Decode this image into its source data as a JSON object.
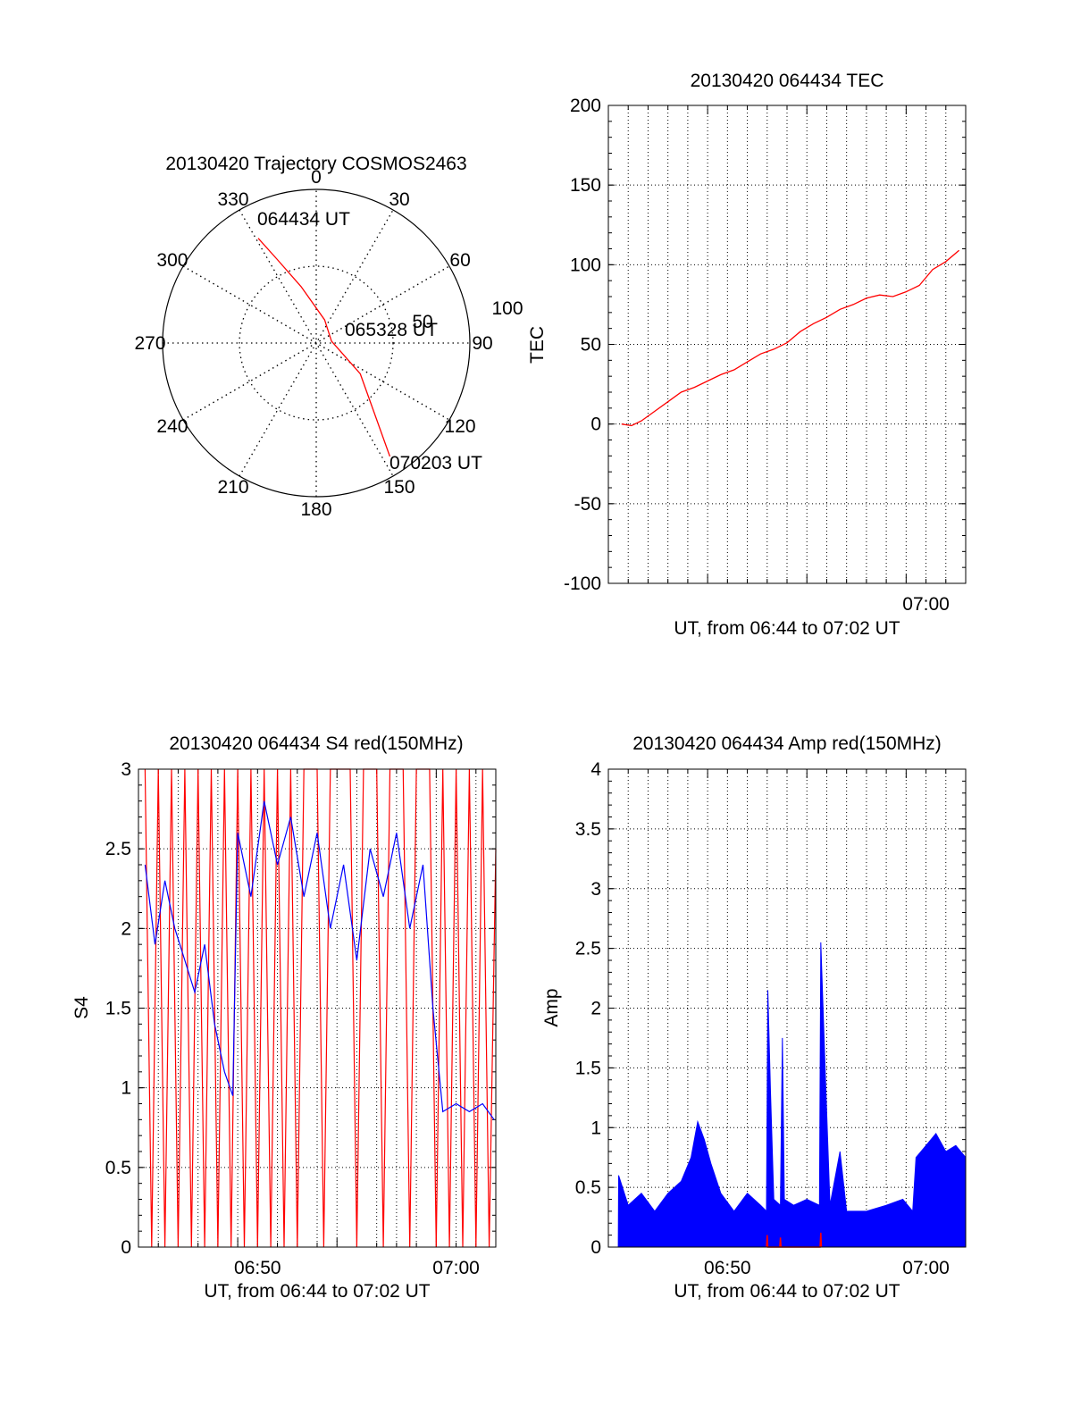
{
  "chart_data": [
    {
      "type": "polar",
      "title": "20130420 Trajectory COSMOS2463",
      "azimuth_ticks": [
        "0",
        "30",
        "60",
        "90",
        "120",
        "150",
        "180",
        "210",
        "240",
        "270",
        "300",
        "330"
      ],
      "ring_labels": [
        "50",
        "100"
      ],
      "r_max": 100,
      "trajectory": [
        {
          "az": 331,
          "r": 78
        },
        {
          "az": 335,
          "r": 60
        },
        {
          "az": 345,
          "r": 38
        },
        {
          "az": 20,
          "r": 16
        },
        {
          "az": 83,
          "r": 10
        },
        {
          "az": 125,
          "r": 35
        },
        {
          "az": 147,
          "r": 88
        }
      ],
      "annotations": [
        {
          "text": "064434 UT",
          "az": 331,
          "r": 78
        },
        {
          "text": "065328 UT",
          "az": 83,
          "r": 10
        },
        {
          "text": "070203 UT",
          "az": 147,
          "r": 88
        }
      ],
      "colors": {
        "trajectory": "#ff0000",
        "grid": "#000000"
      }
    },
    {
      "type": "line",
      "title": "20130420 064434 TEC",
      "xlabel": "UT, from 06:44 to 07:02 UT",
      "ylabel": "TEC",
      "xlim": [
        "06:44",
        "07:02"
      ],
      "ylim": [
        -100,
        200
      ],
      "yticks": [
        "200",
        "150",
        "100",
        "50",
        "0",
        "-50",
        "-100"
      ],
      "xticks": [
        {
          "t": "07:00",
          "label": "07:00"
        }
      ],
      "grid": true,
      "series": [
        {
          "color": "#ff0000",
          "points": [
            [
              "06:44:40",
              0
            ],
            [
              "06:45:10",
              -1
            ],
            [
              "06:45:40",
              2
            ],
            [
              "06:46:20",
              8
            ],
            [
              "06:47:00",
              14
            ],
            [
              "06:47:40",
              20
            ],
            [
              "06:48:20",
              23
            ],
            [
              "06:49:00",
              27
            ],
            [
              "06:49:40",
              31
            ],
            [
              "06:50:20",
              34
            ],
            [
              "06:51:00",
              39
            ],
            [
              "06:51:40",
              44
            ],
            [
              "06:52:20",
              47
            ],
            [
              "06:53:00",
              51
            ],
            [
              "06:53:40",
              58
            ],
            [
              "06:54:20",
              63
            ],
            [
              "06:55:00",
              67
            ],
            [
              "06:55:40",
              72
            ],
            [
              "06:56:20",
              75
            ],
            [
              "06:57:00",
              79
            ],
            [
              "06:57:40",
              81
            ],
            [
              "06:58:20",
              80
            ],
            [
              "06:59:00",
              83
            ],
            [
              "06:59:40",
              87
            ],
            [
              "07:00:20",
              97
            ],
            [
              "07:01:00",
              102
            ],
            [
              "07:01:40",
              109
            ]
          ]
        }
      ]
    },
    {
      "type": "line",
      "title": "20130420 064434 S4 red(150MHz)",
      "xlabel": "UT, from 06:44 to 07:02 UT",
      "ylabel": "S4",
      "xlim": [
        "06:44",
        "07:02"
      ],
      "ylim": [
        0,
        3
      ],
      "yticks": [
        "3",
        "2.5",
        "2",
        "1.5",
        "1",
        "0.5",
        "0"
      ],
      "xticks": [
        {
          "t": "06:50",
          "label": "06:50"
        },
        {
          "t": "07:00",
          "label": "07:00"
        }
      ],
      "grid": true,
      "series": [
        {
          "color": "#0000ff",
          "points": [
            [
              "06:44:20",
              2.4
            ],
            [
              "06:44:50",
              1.9
            ],
            [
              "06:45:20",
              2.3
            ],
            [
              "06:45:50",
              2.0
            ],
            [
              "06:46:20",
              1.8
            ],
            [
              "06:46:50",
              1.6
            ],
            [
              "06:47:20",
              1.9
            ],
            [
              "06:47:50",
              1.4
            ],
            [
              "06:48:20",
              1.1
            ],
            [
              "06:48:45",
              0.95
            ],
            [
              "06:49:00",
              2.6
            ],
            [
              "06:49:40",
              2.2
            ],
            [
              "06:50:20",
              2.8
            ],
            [
              "06:51:00",
              2.4
            ],
            [
              "06:51:40",
              2.7
            ],
            [
              "06:52:20",
              2.2
            ],
            [
              "06:53:00",
              2.6
            ],
            [
              "06:53:40",
              2.0
            ],
            [
              "06:54:20",
              2.4
            ],
            [
              "06:55:00",
              1.8
            ],
            [
              "06:55:40",
              2.5
            ],
            [
              "06:56:20",
              2.2
            ],
            [
              "06:57:00",
              2.6
            ],
            [
              "06:57:40",
              2.0
            ],
            [
              "06:58:20",
              2.4
            ],
            [
              "06:58:50",
              1.5
            ],
            [
              "06:59:20",
              0.85
            ],
            [
              "07:00:00",
              0.9
            ],
            [
              "07:00:40",
              0.85
            ],
            [
              "07:01:20",
              0.9
            ],
            [
              "07:01:55",
              0.8
            ]
          ]
        },
        {
          "color": "#ff0000",
          "points": [
            [
              "06:44:20",
              3.0
            ],
            [
              "06:44:40",
              0
            ],
            [
              "06:45:00",
              3.0
            ],
            [
              "06:45:20",
              0
            ],
            [
              "06:45:40",
              3.0
            ],
            [
              "06:46:00",
              0
            ],
            [
              "06:46:20",
              3.0
            ],
            [
              "06:46:40",
              0
            ],
            [
              "06:47:00",
              3.0
            ],
            [
              "06:47:20",
              0
            ],
            [
              "06:47:40",
              3.0
            ],
            [
              "06:48:00",
              0
            ],
            [
              "06:48:20",
              3.0
            ],
            [
              "06:48:40",
              0
            ],
            [
              "06:49:00",
              3.0
            ],
            [
              "06:49:20",
              0
            ],
            [
              "06:49:40",
              3.0
            ],
            [
              "06:50:00",
              0
            ],
            [
              "06:50:20",
              3.0
            ],
            [
              "06:50:40",
              0
            ],
            [
              "06:51:00",
              3.0
            ],
            [
              "06:51:20",
              0
            ],
            [
              "06:51:40",
              3.0
            ],
            [
              "06:52:00",
              0
            ],
            [
              "06:52:20",
              3.0
            ],
            [
              "06:53:00",
              3.0
            ],
            [
              "06:53:20",
              0
            ],
            [
              "06:53:40",
              3.0
            ],
            [
              "06:54:40",
              3.0
            ],
            [
              "06:55:00",
              0
            ],
            [
              "06:55:20",
              3.0
            ],
            [
              "06:56:00",
              3.0
            ],
            [
              "06:56:20",
              0
            ],
            [
              "06:56:40",
              3.0
            ],
            [
              "06:57:20",
              3.0
            ],
            [
              "06:57:40",
              0
            ],
            [
              "06:58:00",
              3.0
            ],
            [
              "06:58:40",
              3.0
            ],
            [
              "06:59:00",
              0
            ],
            [
              "06:59:20",
              3.0
            ],
            [
              "06:59:40",
              0
            ],
            [
              "07:00:00",
              3.0
            ],
            [
              "07:00:20",
              0
            ],
            [
              "07:00:40",
              3.0
            ],
            [
              "07:01:00",
              0
            ],
            [
              "07:01:20",
              3.0
            ],
            [
              "07:01:40",
              0
            ],
            [
              "07:02:00",
              2.5
            ]
          ]
        }
      ]
    },
    {
      "type": "area",
      "title": "20130420 064434 Amp red(150MHz)",
      "xlabel": "UT, from 06:44 to 07:02 UT",
      "ylabel": "Amp",
      "xlim": [
        "06:44",
        "07:02"
      ],
      "ylim": [
        0,
        4
      ],
      "yticks": [
        "4",
        "3.5",
        "3",
        "2.5",
        "2",
        "1.5",
        "1",
        "0.5",
        "0"
      ],
      "xticks": [
        {
          "t": "06:50",
          "label": "06:50"
        },
        {
          "t": "07:00",
          "label": "07:00"
        }
      ],
      "grid": true,
      "series": [
        {
          "color": "#0000ff",
          "points": [
            [
              "06:44:30",
              0
            ],
            [
              "06:44:31",
              0.6
            ],
            [
              "06:45:00",
              0.35
            ],
            [
              "06:45:40",
              0.45
            ],
            [
              "06:46:20",
              0.3
            ],
            [
              "06:47:00",
              0.45
            ],
            [
              "06:47:40",
              0.55
            ],
            [
              "06:48:10",
              0.75
            ],
            [
              "06:48:30",
              1.05
            ],
            [
              "06:48:50",
              0.9
            ],
            [
              "06:49:10",
              0.7
            ],
            [
              "06:49:40",
              0.45
            ],
            [
              "06:50:20",
              0.3
            ],
            [
              "06:51:00",
              0.45
            ],
            [
              "06:51:40",
              0.35
            ],
            [
              "06:51:58",
              0.3
            ],
            [
              "06:52:02",
              2.15
            ],
            [
              "06:52:10",
              1.3
            ],
            [
              "06:52:20",
              0.4
            ],
            [
              "06:52:40",
              0.35
            ],
            [
              "06:52:46",
              1.75
            ],
            [
              "06:52:52",
              0.4
            ],
            [
              "06:53:20",
              0.35
            ],
            [
              "06:54:00",
              0.4
            ],
            [
              "06:54:38",
              0.35
            ],
            [
              "06:54:42",
              2.55
            ],
            [
              "06:54:55",
              1.5
            ],
            [
              "06:55:10",
              0.35
            ],
            [
              "06:55:40",
              0.8
            ],
            [
              "06:56:00",
              0.3
            ],
            [
              "06:57:00",
              0.3
            ],
            [
              "06:58:00",
              0.35
            ],
            [
              "06:58:50",
              0.4
            ],
            [
              "06:59:20",
              0.3
            ],
            [
              "06:59:30",
              0.75
            ],
            [
              "07:00:00",
              0.85
            ],
            [
              "07:00:30",
              0.95
            ],
            [
              "07:01:00",
              0.8
            ],
            [
              "07:01:30",
              0.85
            ],
            [
              "07:02:00",
              0.75
            ],
            [
              "07:02:00",
              0
            ]
          ]
        },
        {
          "color": "#ff0000",
          "points": [
            [
              "06:51:58",
              0
            ],
            [
              "06:52:00",
              0.1
            ],
            [
              "06:52:02",
              0
            ],
            [
              "06:52:38",
              0
            ],
            [
              "06:52:40",
              0.08
            ],
            [
              "06:52:42",
              0
            ],
            [
              "06:54:40",
              0
            ],
            [
              "06:54:42",
              0.12
            ],
            [
              "06:54:44",
              0
            ]
          ]
        }
      ]
    }
  ]
}
